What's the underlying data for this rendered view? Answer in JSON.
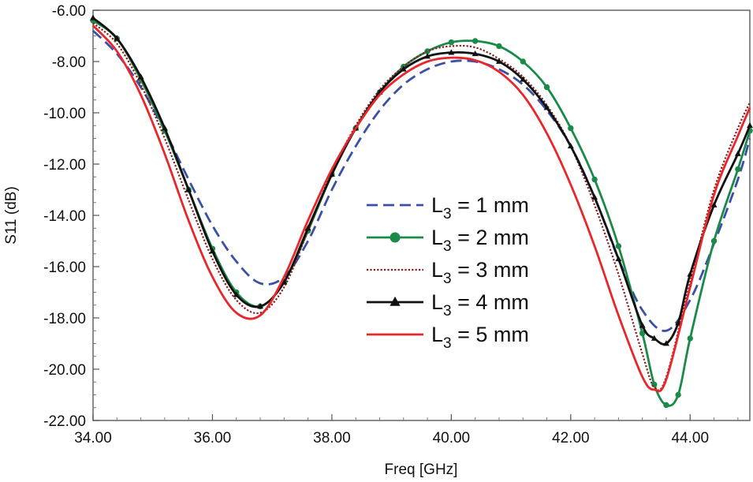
{
  "chart_data": {
    "type": "line",
    "title": "",
    "xlabel": "Freq [GHz]",
    "ylabel": "S11 (dB)",
    "xlim": [
      34,
      45
    ],
    "ylim": [
      -22,
      -6
    ],
    "grid": false,
    "legend_position": "center-right",
    "x_ticks": [
      34,
      36,
      38,
      40,
      42,
      44
    ],
    "x_tick_labels": [
      "34.00",
      "36.00",
      "38.00",
      "40.00",
      "42.00",
      "44.00"
    ],
    "y_ticks": [
      -6,
      -8,
      -10,
      -12,
      -14,
      -16,
      -18,
      -20,
      -22
    ],
    "y_tick_labels": [
      "-6.00",
      "-8.00",
      "-10.00",
      "-12.00",
      "-14.00",
      "-16.00",
      "-18.00",
      "-20.00",
      "-22.00"
    ],
    "series": [
      {
        "name": "L3 = 1 mm",
        "label_main": "L",
        "label_sub": "3",
        "label_rest": " = 1 mm",
        "color": "#3a4fa8",
        "style": "dashed",
        "marker": "none",
        "x": [
          34.0,
          34.4,
          34.8,
          35.2,
          35.6,
          36.0,
          36.4,
          36.8,
          37.2,
          37.6,
          38.0,
          38.4,
          38.8,
          39.2,
          39.6,
          40.0,
          40.4,
          40.8,
          41.2,
          41.6,
          42.0,
          42.4,
          42.8,
          43.2,
          43.6,
          44.0,
          44.4,
          44.8,
          45.0
        ],
        "values": [
          -6.8,
          -7.7,
          -9.0,
          -10.7,
          -12.6,
          -14.4,
          -15.8,
          -16.65,
          -16.4,
          -15.0,
          -13.0,
          -11.3,
          -9.9,
          -8.9,
          -8.3,
          -8.0,
          -8.0,
          -8.3,
          -8.9,
          -9.9,
          -11.3,
          -13.3,
          -15.7,
          -17.7,
          -18.5,
          -17.3,
          -15.1,
          -12.6,
          -11.0
        ]
      },
      {
        "name": "L3 = 2 mm",
        "label_main": "L",
        "label_sub": "3",
        "label_rest": " = 2 mm",
        "color": "#1a8a48",
        "style": "solid",
        "marker": "circle",
        "x": [
          34.0,
          34.4,
          34.8,
          35.2,
          35.6,
          36.0,
          36.4,
          36.8,
          37.2,
          37.6,
          38.0,
          38.4,
          38.8,
          39.2,
          39.6,
          40.0,
          40.4,
          40.8,
          41.2,
          41.6,
          42.0,
          42.4,
          42.8,
          43.2,
          43.4,
          43.6,
          43.8,
          44.0,
          44.4,
          44.8,
          45.0
        ],
        "values": [
          -6.4,
          -7.1,
          -8.7,
          -10.7,
          -13.0,
          -15.3,
          -17.0,
          -17.55,
          -16.6,
          -14.6,
          -12.4,
          -10.6,
          -9.2,
          -8.2,
          -7.6,
          -7.25,
          -7.2,
          -7.4,
          -8.0,
          -9.0,
          -10.6,
          -12.6,
          -15.2,
          -18.6,
          -20.6,
          -21.4,
          -21.0,
          -18.8,
          -15.0,
          -12.2,
          -10.7
        ]
      },
      {
        "name": "L3 = 3 mm",
        "label_main": "L",
        "label_sub": "3",
        "label_rest": " = 3 mm",
        "color": "#8a1c1c",
        "style": "dotted",
        "marker": "none",
        "x": [
          34.0,
          34.4,
          34.8,
          35.2,
          35.6,
          36.0,
          36.4,
          36.8,
          37.2,
          37.6,
          38.0,
          38.4,
          38.8,
          39.2,
          39.6,
          40.0,
          40.4,
          40.8,
          41.2,
          41.6,
          42.0,
          42.4,
          42.8,
          43.2,
          43.4,
          43.6,
          44.0,
          44.4,
          44.8,
          45.0
        ],
        "values": [
          -6.5,
          -7.3,
          -8.9,
          -11.0,
          -13.4,
          -15.7,
          -17.3,
          -17.8,
          -16.8,
          -14.6,
          -12.3,
          -10.5,
          -9.1,
          -8.2,
          -7.6,
          -7.4,
          -7.45,
          -7.9,
          -8.6,
          -9.7,
          -11.3,
          -13.6,
          -16.3,
          -19.4,
          -20.7,
          -20.3,
          -16.6,
          -13.0,
          -10.6,
          -9.6
        ]
      },
      {
        "name": "L3 = 4 mm",
        "label_main": "L",
        "label_sub": "3",
        "label_rest": " = 4 mm",
        "color": "#111111",
        "style": "solid",
        "marker": "triangle",
        "x": [
          34.0,
          34.4,
          34.8,
          35.2,
          35.6,
          36.0,
          36.4,
          36.8,
          37.2,
          37.6,
          38.0,
          38.4,
          38.8,
          39.2,
          39.6,
          40.0,
          40.4,
          40.8,
          41.2,
          41.6,
          42.0,
          42.4,
          42.8,
          43.2,
          43.4,
          43.6,
          43.8,
          44.0,
          44.4,
          44.8,
          45.0
        ],
        "values": [
          -6.3,
          -7.1,
          -8.6,
          -10.6,
          -13.0,
          -15.4,
          -17.1,
          -17.55,
          -16.6,
          -14.5,
          -12.4,
          -10.6,
          -9.2,
          -8.3,
          -7.8,
          -7.65,
          -7.7,
          -8.0,
          -8.7,
          -9.8,
          -11.3,
          -13.3,
          -15.7,
          -18.3,
          -18.8,
          -19.0,
          -18.2,
          -16.3,
          -13.6,
          -11.6,
          -10.5
        ]
      },
      {
        "name": "L3 = 5 mm",
        "label_main": "L",
        "label_sub": "3",
        "label_rest": " = 5 mm",
        "color": "#e8262b",
        "style": "solid",
        "marker": "none",
        "x": [
          34.0,
          34.4,
          34.8,
          35.2,
          35.6,
          36.0,
          36.4,
          36.8,
          37.2,
          37.6,
          38.0,
          38.4,
          38.8,
          39.2,
          39.6,
          40.0,
          40.4,
          40.8,
          41.2,
          41.6,
          42.0,
          42.4,
          42.8,
          43.2,
          43.4,
          43.6,
          44.0,
          44.4,
          44.8,
          45.0
        ],
        "values": [
          -6.6,
          -7.6,
          -9.3,
          -11.6,
          -14.2,
          -16.4,
          -17.8,
          -17.9,
          -16.4,
          -14.2,
          -12.2,
          -10.6,
          -9.3,
          -8.5,
          -8.0,
          -7.85,
          -7.95,
          -8.4,
          -9.3,
          -10.8,
          -12.8,
          -15.2,
          -17.9,
          -20.3,
          -20.8,
          -20.4,
          -16.8,
          -13.2,
          -10.9,
          -9.8
        ]
      }
    ]
  }
}
